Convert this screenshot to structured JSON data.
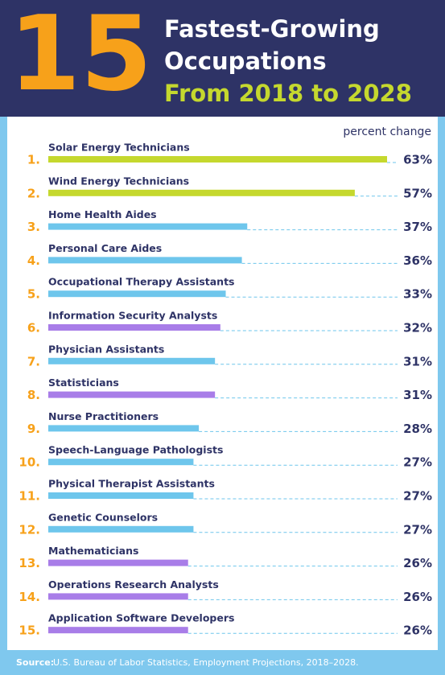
{
  "chart_data": {
    "type": "bar",
    "big_number": "15",
    "title": [
      "Fastest-Growing",
      "Occupations"
    ],
    "subtitle": "From 2018 to 2028",
    "value_axis_label": "percent change",
    "ranks": [
      "1.",
      "2.",
      "3.",
      "4.",
      "5.",
      "6.",
      "7.",
      "8.",
      "9.",
      "10.",
      "11.",
      "12.",
      "13.",
      "14.",
      "15."
    ],
    "categories": [
      "Solar Energy Technicians",
      "Wind Energy Technicians",
      "Home Health Aides",
      "Personal Care Aides",
      "Occupational Therapy Assistants",
      "Information Security Analysts",
      "Physician Assistants",
      "Statisticians",
      "Nurse Practitioners",
      "Speech-Language Pathologists",
      "Physical Therapist Assistants",
      "Genetic Counselors",
      "Mathematicians",
      "Operations Research Analysts",
      "Application Software Developers"
    ],
    "values": [
      63,
      57,
      37,
      36,
      33,
      32,
      31,
      31,
      28,
      27,
      27,
      27,
      26,
      26,
      26
    ],
    "value_labels": [
      "63%",
      "57%",
      "37%",
      "36%",
      "33%",
      "32%",
      "31%",
      "31%",
      "28%",
      "27%",
      "27%",
      "27%",
      "26%",
      "26%",
      "26%"
    ],
    "colors": [
      "#c5d82e",
      "#c5d82e",
      "#6ec6ec",
      "#6ec6ec",
      "#6ec6ec",
      "#a87de8",
      "#6ec6ec",
      "#a87de8",
      "#6ec6ec",
      "#6ec6ec",
      "#6ec6ec",
      "#6ec6ec",
      "#a87de8",
      "#a87de8",
      "#a87de8"
    ],
    "xlim": [
      0,
      63
    ],
    "source_label": "Source:",
    "source": "U.S. Bureau of Labor Statistics, Employment Projections, 2018–2028."
  }
}
